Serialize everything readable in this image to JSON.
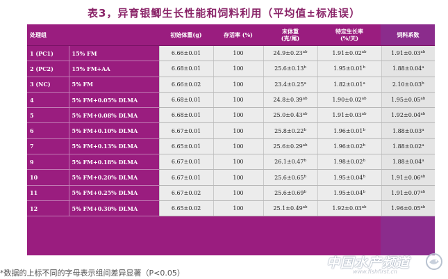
{
  "title": "表3，异育银鲫生长性能和饲料利用（平均值±标准误）",
  "header": {
    "group": "处理组",
    "initial_weight": "初始体重(g)",
    "survival": "存活率 (%)",
    "final_weight_line1": "末体重",
    "final_weight_line2": "(克/尾)",
    "sgr_line1": "特定生长率",
    "sgr_line2": "(%/天)",
    "fcr": "饲料系数"
  },
  "rows": [
    {
      "id": "1 (PC1)",
      "diet": "15% FM",
      "initial": "6.66±0.01",
      "survival": "100",
      "final": "24.9±0.23",
      "final_sup": "ab",
      "sgr": "1.91±0.02",
      "sgr_sup": "ab",
      "fcr": "1.91±0.03",
      "fcr_sup": "ab"
    },
    {
      "id": "2 (PC2)",
      "diet": "15% FM+AA",
      "initial": "6.68±0.01",
      "survival": "100",
      "final": "25.6±0.13",
      "final_sup": "b",
      "sgr": "1.95±0.01",
      "sgr_sup": "b",
      "fcr": "1.88±0.04",
      "fcr_sup": "a"
    },
    {
      "id": "3 (NC)",
      "diet": "5% FM",
      "initial": "6.66±0.02",
      "survival": "100",
      "final": "23.4±0.25",
      "final_sup": "a",
      "sgr": "1.82±0.01",
      "sgr_sup": "a",
      "fcr": "2.10±0.03",
      "fcr_sup": "b"
    },
    {
      "id": "4",
      "diet": "5% FM+0.05% DLMA",
      "initial": "6.68±0.01",
      "survival": "100",
      "final": "24.8±0.39",
      "final_sup": "ab",
      "sgr": "1.90±0.02",
      "sgr_sup": "ab",
      "fcr": "1.95±0.05",
      "fcr_sup": "ab"
    },
    {
      "id": "5",
      "diet": "5% FM+0.08% DLMA",
      "initial": "6.68±0.01",
      "survival": "100",
      "final": "25.0±0.43",
      "final_sup": "ab",
      "sgr": "1.91±0.03",
      "sgr_sup": "ab",
      "fcr": "1.92±0.04",
      "fcr_sup": "ab"
    },
    {
      "id": "6",
      "diet": "5% FM+0.10% DLMA",
      "initial": "6.67±0.01",
      "survival": "100",
      "final": "25.8±0.22",
      "final_sup": "b",
      "sgr": "1.96±0.01",
      "sgr_sup": "b",
      "fcr": "1.88±0.03",
      "fcr_sup": "a"
    },
    {
      "id": "7",
      "diet": "5% FM+0.13% DLMA",
      "initial": "6.65±0.01",
      "survival": "100",
      "final": "25.6±0.29",
      "final_sup": "ab",
      "sgr": "1.96±0.02",
      "sgr_sup": "b",
      "fcr": "1.88±0.02",
      "fcr_sup": "a"
    },
    {
      "id": "9",
      "diet": "5% FM+0.18% DLMA",
      "initial": "6.67±0.01",
      "survival": "100",
      "final": "26.1±0.47",
      "final_sup": "b",
      "sgr": "1.98±0.02",
      "sgr_sup": "b",
      "fcr": "1.88±0.04",
      "fcr_sup": "a"
    },
    {
      "id": "10",
      "diet": "5% FM+0.20% DLMA",
      "initial": "6.67±0.01",
      "survival": "100",
      "final": "25.6±0.65",
      "final_sup": "b",
      "sgr": "1.95±0.04",
      "sgr_sup": "b",
      "fcr": "1.91±0.06",
      "fcr_sup": "ab"
    },
    {
      "id": "11",
      "diet": "5% FM+0.25% DLMA",
      "initial": "6.67±0.02",
      "survival": "100",
      "final": "25.6±0.69",
      "final_sup": "b",
      "sgr": "1.95±0.04",
      "sgr_sup": "b",
      "fcr": "1.91±0.07",
      "fcr_sup": "ab"
    },
    {
      "id": "12",
      "diet": "5% FM+0.30% DLMA",
      "initial": "6.65±0.02",
      "survival": "100",
      "final": "25.1±0.49",
      "final_sup": "ab",
      "sgr": "1.92±0.03",
      "sgr_sup": "ab",
      "fcr": "1.96±0.05",
      "fcr_sup": "ab"
    }
  ],
  "footnote": "*数据的上标不同的字母表示组间差异显著（P<0.05）",
  "watermark": {
    "text": "中国水产频道",
    "sub": "www.fishfirst.cn",
    "logo_icon": "fish-logo-icon"
  },
  "colors": {
    "panel": "#9a1d7f",
    "title": "#8a2468",
    "cell": "#ececec"
  }
}
